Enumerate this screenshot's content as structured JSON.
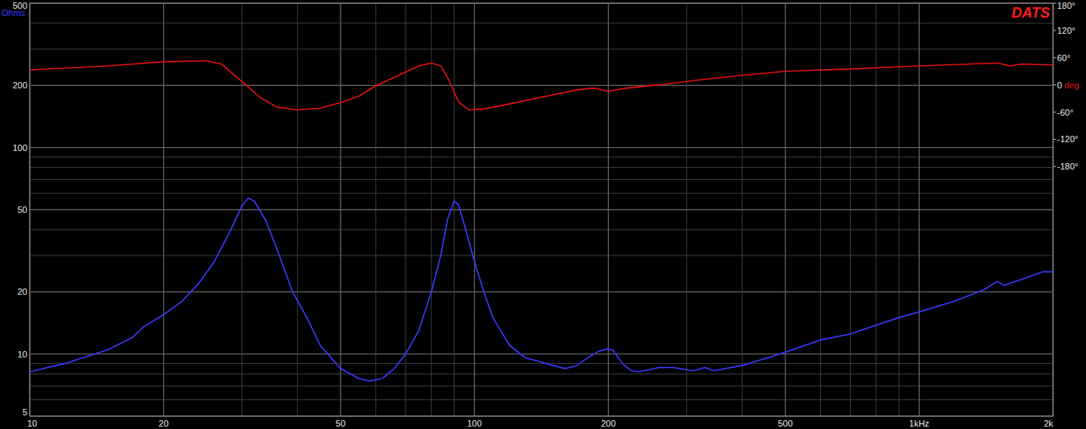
{
  "chart_data": {
    "type": "line",
    "title": "DATS",
    "y_label": "Ohms",
    "y2_label": "deg",
    "log": true,
    "grid": true,
    "xlim": [
      10,
      2000
    ],
    "xticks": [
      10,
      20,
      50,
      100,
      200,
      500,
      {
        "value": 1000,
        "label": "1kHz"
      },
      {
        "value": 2000,
        "label": "2k"
      }
    ],
    "ylim": [
      5,
      500
    ],
    "yticks": [
      5,
      10,
      20,
      50,
      100,
      200,
      500
    ],
    "y2lim": [
      -730,
      180
    ],
    "y2ticks": [
      {
        "value": 180,
        "label": "180°"
      },
      {
        "value": 120,
        "label": "120°"
      },
      {
        "value": 60,
        "label": "60°"
      },
      0,
      {
        "value": -60,
        "label": "-60°"
      },
      {
        "value": -120,
        "label": "-120°"
      },
      {
        "value": -180,
        "label": "-180°"
      }
    ],
    "series": [
      {
        "color": "#3a3aff",
        "x": [
          10,
          12,
          15,
          17,
          18,
          20,
          22,
          24,
          26,
          28,
          30,
          31,
          32,
          34,
          36,
          39,
          42,
          45,
          50,
          55,
          58,
          62,
          66,
          70,
          75,
          80,
          84,
          87,
          90,
          92,
          95,
          100,
          105,
          110,
          120,
          130,
          140,
          150,
          160,
          170,
          180,
          190,
          200,
          205,
          215,
          225,
          235,
          260,
          280,
          310,
          330,
          345,
          400,
          500,
          600,
          700,
          800,
          900,
          1000,
          1200,
          1400,
          1500,
          1550,
          1700,
          1900,
          2000
        ],
        "values": [
          8.2,
          9,
          10.5,
          12,
          13.5,
          15.5,
          18,
          22,
          28,
          38,
          52,
          57,
          55,
          44,
          32,
          20,
          15,
          11,
          8.5,
          7.6,
          7.4,
          7.6,
          8.5,
          10,
          13,
          20,
          30,
          45,
          55,
          53,
          42,
          28,
          20,
          15,
          11,
          9.6,
          9.2,
          8.8,
          8.5,
          8.8,
          9.6,
          10.3,
          10.6,
          10.4,
          9,
          8.3,
          8.2,
          8.6,
          8.6,
          8.3,
          8.6,
          8.3,
          8.8,
          10.2,
          11.7,
          12.5,
          13.8,
          15,
          16,
          18,
          20.5,
          22.5,
          21.5,
          23,
          25,
          25
        ]
      },
      {
        "color": "#e01010",
        "axis": "y2",
        "x": [
          10,
          15,
          20,
          25,
          27,
          30,
          33,
          36,
          40,
          45,
          50,
          55,
          60,
          70,
          75,
          80,
          84,
          88,
          92,
          97,
          105,
          120,
          140,
          170,
          185,
          200,
          220,
          260,
          320,
          400,
          500,
          700,
          1000,
          1500,
          1600,
          1700,
          2000
        ],
        "values": [
          33,
          42,
          51,
          53,
          46,
          7,
          -28,
          -49,
          -55,
          -51,
          -39,
          -25,
          -2,
          28,
          42,
          48,
          42,
          7,
          -37,
          -55,
          -53,
          -42,
          -28,
          -11,
          -7,
          -14,
          -7,
          0,
          11,
          21,
          30,
          35,
          42,
          48,
          42,
          46,
          44
        ]
      }
    ]
  }
}
